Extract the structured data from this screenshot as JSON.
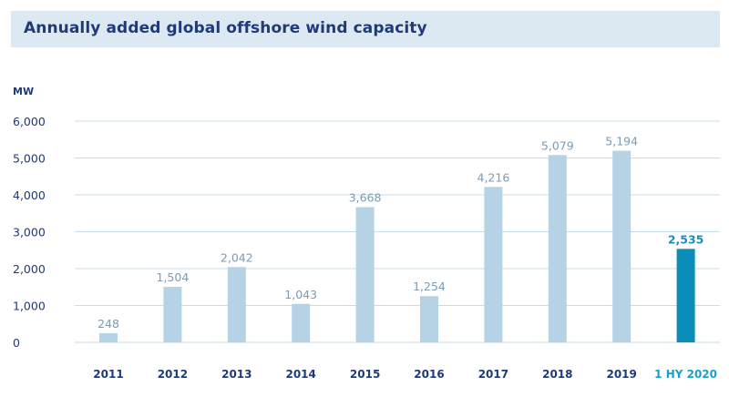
{
  "chart_data": {
    "type": "bar",
    "title": "Annually added global offshore wind capacity",
    "ylabel": "MW",
    "xlabel": "",
    "ylim": [
      0,
      6000
    ],
    "yticks": [
      0,
      1000,
      2000,
      3000,
      4000,
      5000,
      6000
    ],
    "ytick_labels": [
      "0",
      "1,000",
      "2,000",
      "3,000",
      "4,000",
      "5,000",
      "6,000"
    ],
    "grid": true,
    "categories": [
      "2011",
      "2012",
      "2013",
      "2014",
      "2015",
      "2016",
      "2017",
      "2018",
      "2019",
      "1 HY 2020"
    ],
    "values": [
      248,
      1504,
      2042,
      1043,
      3668,
      1254,
      4216,
      5079,
      5194,
      2535
    ],
    "value_labels": [
      "248",
      "1,504",
      "2,042",
      "1,043",
      "3,668",
      "1,254",
      "4,216",
      "5,079",
      "5,194",
      "2,535"
    ],
    "highlight_index": 9,
    "colors": {
      "bar": "#b5d3e4",
      "highlight_bar": "#0a8db8",
      "grid": "#c5dcea",
      "title_band": "#dde9f2",
      "text": "#1f3a7a"
    }
  }
}
